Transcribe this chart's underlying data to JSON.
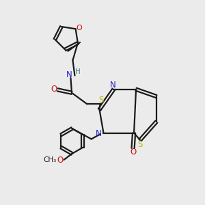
{
  "bg_color": "#ebebeb",
  "bond_color": "#1a1a1a",
  "N_color": "#2020cc",
  "O_color": "#cc1010",
  "S_color": "#b8b800",
  "H_color": "#4a7a7a",
  "figsize": [
    3.0,
    3.0
  ],
  "dpi": 100,
  "xlim": [
    0,
    10
  ],
  "ylim": [
    0,
    10
  ]
}
